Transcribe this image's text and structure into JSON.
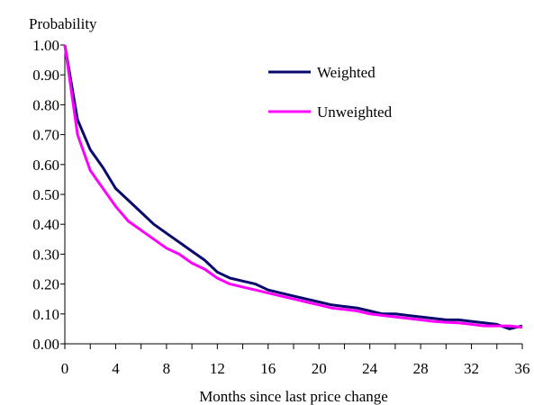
{
  "chart_data": {
    "type": "line",
    "title": "",
    "ylabel": "Probability",
    "xlabel": "Months since last price change",
    "xlim": [
      0,
      36
    ],
    "ylim": [
      0,
      1
    ],
    "x_ticks": [
      0,
      4,
      8,
      12,
      16,
      20,
      24,
      28,
      32,
      36
    ],
    "y_ticks": [
      0,
      0.1,
      0.2,
      0.3,
      0.4,
      0.5,
      0.6,
      0.7,
      0.8,
      0.9,
      1.0
    ],
    "y_tick_labels": [
      "0.00",
      "0.10",
      "0.20",
      "0.30",
      "0.40",
      "0.50",
      "0.60",
      "0.70",
      "0.80",
      "0.90",
      "1.00"
    ],
    "grid": false,
    "legend_position": "top-right",
    "x": [
      0,
      1,
      2,
      3,
      4,
      5,
      6,
      7,
      8,
      9,
      10,
      11,
      12,
      13,
      14,
      15,
      16,
      17,
      18,
      19,
      20,
      21,
      22,
      23,
      24,
      25,
      26,
      27,
      28,
      29,
      30,
      31,
      32,
      33,
      34,
      35,
      36
    ],
    "series": [
      {
        "name": "Weighted",
        "color": "#0a0a6e",
        "values": [
          1.0,
          0.75,
          0.65,
          0.59,
          0.52,
          0.48,
          0.44,
          0.4,
          0.37,
          0.34,
          0.31,
          0.28,
          0.24,
          0.22,
          0.21,
          0.2,
          0.18,
          0.17,
          0.16,
          0.15,
          0.14,
          0.13,
          0.125,
          0.12,
          0.11,
          0.1,
          0.1,
          0.095,
          0.09,
          0.085,
          0.08,
          0.08,
          0.075,
          0.07,
          0.065,
          0.05,
          0.06
        ]
      },
      {
        "name": "Unweighted",
        "color": "#ff00ff",
        "values": [
          1.0,
          0.7,
          0.58,
          0.52,
          0.46,
          0.41,
          0.38,
          0.35,
          0.32,
          0.3,
          0.27,
          0.25,
          0.22,
          0.2,
          0.19,
          0.18,
          0.17,
          0.16,
          0.15,
          0.14,
          0.13,
          0.12,
          0.115,
          0.11,
          0.1,
          0.095,
          0.09,
          0.085,
          0.08,
          0.075,
          0.072,
          0.07,
          0.065,
          0.06,
          0.06,
          0.06,
          0.055
        ]
      }
    ]
  }
}
